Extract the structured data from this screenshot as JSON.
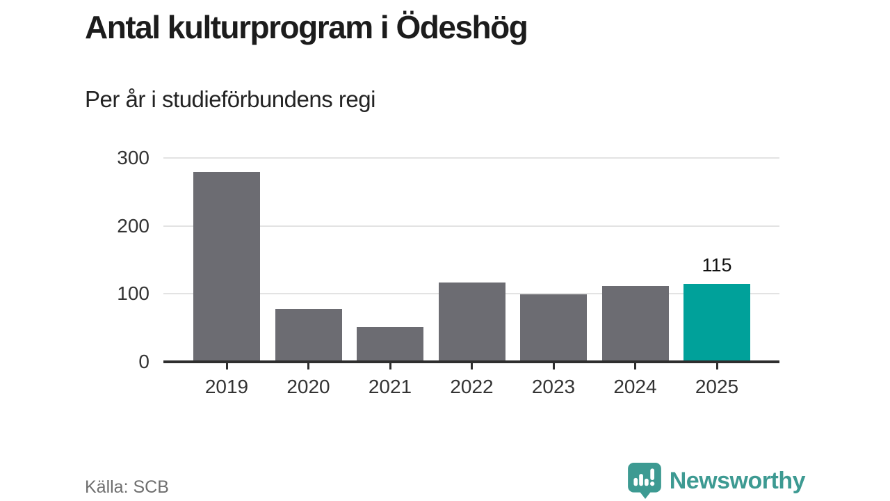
{
  "header": {
    "title": "Antal kulturprogram i Ödeshög",
    "subtitle": "Per år i studieförbundens regi"
  },
  "footer": {
    "source": "Källa: SCB",
    "brand_name": "Newsworthy",
    "brand_icon": "newsworthy-speech-bubble-bar-chart-icon"
  },
  "colors": {
    "bar_gray": "#6c6c72",
    "bar_highlight_teal": "#00a19a",
    "brand_teal": "#3d9a92",
    "axis": "#2e2e2e",
    "gridline": "#e3e3e3"
  },
  "chart_data": {
    "type": "bar",
    "title": "Antal kulturprogram i Ödeshög",
    "subtitle": "Per år i studieförbundens regi",
    "categories": [
      "2019",
      "2020",
      "2021",
      "2022",
      "2023",
      "2024",
      "2025"
    ],
    "values": [
      280,
      78,
      51,
      117,
      99,
      112,
      115
    ],
    "xlabel": "",
    "ylabel": "",
    "ylim": [
      0,
      300
    ],
    "yticks": [
      0,
      100,
      200,
      300
    ],
    "grid": "horizontal-only",
    "legend": "none",
    "highlight_index": 6,
    "value_labels": [
      {
        "index": 6,
        "text": "115"
      }
    ],
    "source": "Källa: SCB"
  }
}
